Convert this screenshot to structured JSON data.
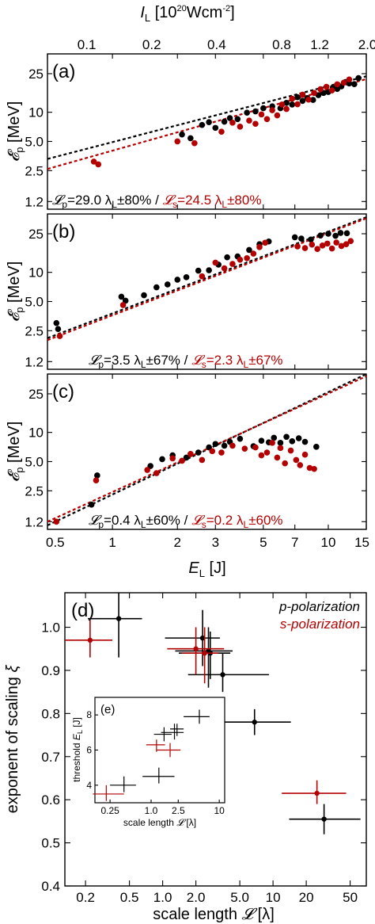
{
  "colors": {
    "p": "#000000",
    "s": "#b30000"
  },
  "top_panels": {
    "top_axis": {
      "label_main": "I",
      "label_sub": "L",
      "label_unit": "[10",
      "label_exp": "20",
      "label_unit2": "Wcm",
      "label_exp2": "-2",
      "label_close": "]",
      "ticks": [
        {
          "label": "0.1",
          "E": 0.76
        },
        {
          "label": "0.2",
          "E": 1.52
        },
        {
          "label": "0.4",
          "E": 3.04
        },
        {
          "label": "0.8",
          "E": 6.08
        },
        {
          "label": "1.2",
          "E": 9.12
        },
        {
          "label": "2.0",
          "E": 15.2
        }
      ]
    },
    "y_axis": {
      "symbol": "𝓔",
      "sub": "p",
      "unit": " [MeV]",
      "ticks": [
        {
          "label": "1.2",
          "v": 1.2
        },
        {
          "label": "2.5",
          "v": 2.5
        },
        {
          "label": "5.0",
          "v": 5.0
        },
        {
          "label": "10",
          "v": 10
        },
        {
          "label": "25",
          "v": 25
        }
      ]
    },
    "x_axis": {
      "label_main": "E",
      "label_sub": "L",
      "label_unit": " [J]",
      "ticks": [
        {
          "label": "0.5",
          "v": 0.5
        },
        {
          "label": "1",
          "v": 1
        },
        {
          "label": "2",
          "v": 2
        },
        {
          "label": "3",
          "v": 3
        },
        {
          "label": "5",
          "v": 5
        },
        {
          "label": "7",
          "v": 7
        },
        {
          "label": "10",
          "v": 10
        },
        {
          "label": "15",
          "v": 15
        }
      ]
    }
  },
  "panel_a": {
    "label": "(a)",
    "ann_p_sym": "𝓛",
    "ann_p_sub": "p",
    "ann_p_text": "=29.0 λ",
    "ann_p_sub2": "L",
    "ann_p_tail": "±80% /",
    "ann_s_sym": "𝓛",
    "ann_s_sub": "s",
    "ann_s_text": "=24.5 λ",
    "ann_s_sub2": "L",
    "ann_s_tail": "±80%"
  },
  "panel_b": {
    "label": "(b)",
    "ann_p_sym": "𝓛",
    "ann_p_sub": "p",
    "ann_p_text": "=3.5 λ",
    "ann_p_sub2": "L",
    "ann_p_tail": "±67% /",
    "ann_s_sym": "𝓛",
    "ann_s_sub": "s",
    "ann_s_text": "=2.3 λ",
    "ann_s_sub2": "L",
    "ann_s_tail": "±67%"
  },
  "panel_c": {
    "label": "(c)",
    "ann_p_sym": "𝓛",
    "ann_p_sub": "p",
    "ann_p_text": "=0.4 λ",
    "ann_p_sub2": "L",
    "ann_p_tail": "±60% /",
    "ann_s_sym": "𝓛",
    "ann_s_sub": "s",
    "ann_s_text": "=0.2 λ",
    "ann_s_sub2": "L",
    "ann_s_tail": "±60%"
  },
  "panel_d": {
    "label": "(d)",
    "legend_p": "p-polarization",
    "legend_s": "s-polarization",
    "ylabel_main": "exponent of scaling ",
    "ylabel_sym": "ξ",
    "xlabel_main": "scale length ",
    "xlabel_sym": "𝓛",
    "xlabel_unit": " [λ]",
    "x_ticks": [
      {
        "label": "0.2",
        "v": 0.2
      },
      {
        "label": "0.5",
        "v": 0.5
      },
      {
        "label": "1.0",
        "v": 1.0
      },
      {
        "label": "2.0",
        "v": 2.0
      },
      {
        "label": "5.0",
        "v": 5.0
      },
      {
        "label": "10",
        "v": 10
      },
      {
        "label": "20",
        "v": 20
      },
      {
        "label": "50",
        "v": 50
      }
    ],
    "y_ticks": [
      {
        "label": "0.4",
        "v": 0.4
      },
      {
        "label": "0.5",
        "v": 0.5
      },
      {
        "label": "0.6",
        "v": 0.6
      },
      {
        "label": "0.7",
        "v": 0.7
      },
      {
        "label": "0.8",
        "v": 0.8
      },
      {
        "label": "0.9",
        "v": 0.9
      },
      {
        "label": "1.0",
        "v": 1.0
      }
    ]
  },
  "panel_e": {
    "label": "(e)",
    "ylabel_main": "threshold ",
    "ylabel_sym": "E",
    "ylabel_sub": "L",
    "ylabel_unit": " [J]",
    "xlabel_main": "scale length ",
    "xlabel_sym": "𝓛",
    "xlabel_unit": " [λ]",
    "x_ticks": [
      {
        "label": "0.25",
        "v": 0.25
      },
      {
        "label": "1.0",
        "v": 1.0
      },
      {
        "label": "2.5",
        "v": 2.5
      },
      {
        "label": "10",
        "v": 10
      }
    ],
    "y_ticks": [
      {
        "label": "4",
        "v": 4
      },
      {
        "label": "6",
        "v": 6
      },
      {
        "label": "8",
        "v": 8
      }
    ]
  },
  "chart_data": [
    {
      "type": "scatter",
      "panel": "a",
      "x_scale": "log",
      "y_scale": "log",
      "xlim": [
        0.5,
        15
      ],
      "ylim": [
        1.0,
        40
      ],
      "fits": [
        {
          "series": "p",
          "x": [
            0.5,
            15
          ],
          "y": [
            3.3,
            23.5
          ]
        },
        {
          "series": "s",
          "x": [
            0.5,
            15
          ],
          "y": [
            2.6,
            22.0
          ]
        }
      ],
      "series": [
        {
          "name": "p",
          "x": [
            2.1,
            2.3,
            2.6,
            2.8,
            3.0,
            3.3,
            3.5,
            3.8,
            4.2,
            4.6,
            5.0,
            5.5,
            6.0,
            6.4,
            6.8,
            7.2,
            7.6,
            8.0,
            8.5,
            9.0,
            9.5,
            10.0,
            10.5,
            11.0,
            11.5,
            12.0,
            12.5,
            13.2,
            13.8
          ],
          "y": [
            5.9,
            5.4,
            7.4,
            7.9,
            6.9,
            8.0,
            8.7,
            8.5,
            9.9,
            10.2,
            11.0,
            11.5,
            11.0,
            12.5,
            12.0,
            14.3,
            13.1,
            14.0,
            13.4,
            15.0,
            15.8,
            16.2,
            18.0,
            17.4,
            18.5,
            20.5,
            19.8,
            19.5,
            22.5
          ]
        },
        {
          "name": "s",
          "x": [
            0.82,
            0.86,
            2.0,
            2.4,
            3.2,
            3.6,
            3.9,
            4.3,
            4.6,
            4.9,
            5.2,
            5.5,
            5.8,
            6.1,
            6.4,
            6.8,
            7.2,
            7.6,
            8.1,
            8.6,
            9.2,
            9.8,
            10.4,
            11.0,
            11.8,
            12.5
          ],
          "y": [
            3.1,
            2.9,
            5.0,
            4.8,
            6.3,
            7.8,
            7.1,
            8.2,
            7.6,
            9.5,
            8.5,
            10.5,
            9.3,
            12.0,
            10.8,
            13.8,
            12.1,
            15.2,
            13.5,
            15.8,
            17.3,
            18.3,
            16.8,
            19.4,
            20.2,
            21.8
          ]
        }
      ]
    },
    {
      "type": "scatter",
      "panel": "b",
      "x_scale": "log",
      "y_scale": "log",
      "xlim": [
        0.5,
        15
      ],
      "ylim": [
        1.0,
        40
      ],
      "fits": [
        {
          "series": "p",
          "x": [
            0.5,
            15
          ],
          "y": [
            2.1,
            37.0
          ]
        },
        {
          "series": "s",
          "x": [
            0.5,
            15
          ],
          "y": [
            2.0,
            36.0
          ]
        }
      ],
      "series": [
        {
          "name": "p",
          "x": [
            0.55,
            0.56,
            1.1,
            1.15,
            1.4,
            1.6,
            1.8,
            2.0,
            2.2,
            2.5,
            2.8,
            3.1,
            3.4,
            3.8,
            4.3,
            4.8,
            5.3,
            7.0,
            7.5,
            8.3,
            9.2,
            10.0,
            10.8,
            11.4,
            12.2
          ],
          "y": [
            3.0,
            2.6,
            5.6,
            5.1,
            5.8,
            7.0,
            7.5,
            8.4,
            8.9,
            10.4,
            10.5,
            12.0,
            14.3,
            14.6,
            17.0,
            19.5,
            20.8,
            23.0,
            22.3,
            21.8,
            24.0,
            25.0,
            23.8,
            25.5,
            25.3
          ]
        },
        {
          "name": "s",
          "x": [
            0.57,
            1.12,
            2.6,
            3.0,
            3.3,
            3.6,
            3.9,
            4.2,
            4.5,
            4.8,
            5.1,
            7.2,
            7.8,
            8.4,
            8.9,
            9.4,
            9.9,
            10.4,
            10.9,
            11.5,
            12.1,
            12.7
          ],
          "y": [
            2.2,
            4.6,
            9.1,
            12.6,
            11.0,
            12.2,
            13.5,
            14.0,
            15.6,
            18.2,
            20.2,
            18.5,
            17.8,
            19.3,
            17.4,
            18.9,
            19.8,
            17.6,
            20.3,
            18.7,
            19.5,
            21.0
          ]
        }
      ]
    },
    {
      "type": "scatter",
      "panel": "c",
      "x_scale": "log",
      "y_scale": "log",
      "xlim": [
        0.5,
        15
      ],
      "ylim": [
        1.0,
        40
      ],
      "fits": [
        {
          "series": "p",
          "x": [
            0.5,
            15
          ],
          "y": [
            1.1,
            40.0
          ]
        },
        {
          "series": "s",
          "x": [
            0.5,
            15
          ],
          "y": [
            1.2,
            38.0
          ]
        }
      ],
      "series": [
        {
          "name": "p",
          "x": [
            0.8,
            0.85,
            1.5,
            1.7,
            1.9,
            2.2,
            2.5,
            2.8,
            3.0,
            3.3,
            3.5,
            3.9,
            4.5,
            4.9,
            5.3,
            5.6,
            6.0,
            6.4,
            6.8,
            7.3,
            7.8,
            8.8
          ],
          "y": [
            1.8,
            3.6,
            4.5,
            5.3,
            5.8,
            5.5,
            6.2,
            7.0,
            7.6,
            7.3,
            8.0,
            8.6,
            7.2,
            8.2,
            7.9,
            8.8,
            7.8,
            9.0,
            8.1,
            8.7,
            8.0,
            7.1
          ]
        },
        {
          "name": "s",
          "x": [
            0.55,
            0.84,
            1.45,
            1.6,
            1.9,
            2.1,
            2.3,
            2.6,
            2.9,
            3.2,
            3.6,
            4.1,
            4.6,
            4.9,
            5.2,
            5.5,
            5.8,
            6.0,
            6.3,
            6.7,
            7.1,
            7.4,
            7.8,
            8.2,
            8.6
          ],
          "y": [
            1.2,
            3.2,
            4.1,
            3.8,
            5.4,
            5.1,
            6.0,
            5.2,
            6.4,
            6.2,
            7.3,
            6.8,
            7.0,
            5.8,
            6.2,
            7.8,
            5.5,
            6.9,
            4.8,
            6.5,
            5.2,
            4.6,
            5.9,
            4.3,
            4.2
          ]
        }
      ]
    },
    {
      "type": "scatter",
      "panel": "d",
      "x_scale": "log",
      "y_scale": "linear",
      "xlim": [
        0.13,
        70
      ],
      "ylim": [
        0.4,
        1.08
      ],
      "series": [
        {
          "name": "p",
          "points": [
            {
              "x": 0.4,
              "xlo": 0.21,
              "xhi": 0.65,
              "y": 1.02,
              "ylo": 0.93,
              "yhi": 1.09
            },
            {
              "x": 2.3,
              "xlo": 1.05,
              "xhi": 3.3,
              "y": 0.975,
              "ylo": 0.91,
              "yhi": 1.04
            },
            {
              "x": 3.5,
              "xlo": 1.7,
              "xhi": 9.2,
              "y": 0.89,
              "ylo": 0.85,
              "yhi": 0.94
            },
            {
              "x": 2.6,
              "xlo": 1.3,
              "xhi": 4.3,
              "y": 0.945,
              "ylo": 0.86,
              "yhi": 1.0
            },
            {
              "x": 2.7,
              "xlo": 1.4,
              "xhi": 4.1,
              "y": 0.94,
              "ylo": 0.88,
              "yhi": 0.99
            },
            {
              "x": 6.8,
              "xlo": 3.5,
              "xhi": 14.5,
              "y": 0.78,
              "ylo": 0.75,
              "yhi": 0.81
            },
            {
              "x": 29,
              "xlo": 14,
              "xhi": 62,
              "y": 0.555,
              "ylo": 0.52,
              "yhi": 0.59
            }
          ]
        },
        {
          "name": "s",
          "points": [
            {
              "x": 0.22,
              "xlo": 0.12,
              "xhi": 0.35,
              "y": 0.97,
              "ylo": 0.93,
              "yhi": 1.02
            },
            {
              "x": 2.0,
              "xlo": 1.1,
              "xhi": 3.6,
              "y": 0.95,
              "ylo": 0.89,
              "yhi": 1.0
            },
            {
              "x": 2.4,
              "xlo": 1.5,
              "xhi": 3.2,
              "y": 0.94,
              "ylo": 0.87,
              "yhi": 1.0
            },
            {
              "x": 25,
              "xlo": 12,
              "xhi": 46,
              "y": 0.615,
              "ylo": 0.59,
              "yhi": 0.645
            }
          ]
        }
      ]
    },
    {
      "type": "scatter",
      "panel": "e",
      "x_scale": "log",
      "y_scale": "linear",
      "xlim": [
        0.15,
        12
      ],
      "ylim": [
        3.0,
        9.0
      ],
      "series": [
        {
          "name": "p",
          "points": [
            {
              "x": 0.4,
              "xlo": 0.25,
              "xhi": 0.6,
              "y": 4.0,
              "ylo": 3.6,
              "yhi": 4.5
            },
            {
              "x": 1.3,
              "xlo": 0.75,
              "xhi": 2.2,
              "y": 4.5,
              "ylo": 4.1,
              "yhi": 5.0
            },
            {
              "x": 1.55,
              "xlo": 1.1,
              "xhi": 2.0,
              "y": 6.9,
              "ylo": 6.5,
              "yhi": 7.3
            },
            {
              "x": 2.2,
              "xlo": 1.4,
              "xhi": 3.0,
              "y": 7.0,
              "ylo": 6.6,
              "yhi": 7.5
            },
            {
              "x": 2.4,
              "xlo": 1.9,
              "xhi": 3.0,
              "y": 7.2,
              "ylo": 6.8,
              "yhi": 7.5
            },
            {
              "x": 5.1,
              "xlo": 3.0,
              "xhi": 7.2,
              "y": 7.9,
              "ylo": 7.5,
              "yhi": 8.3
            }
          ]
        },
        {
          "name": "s",
          "points": [
            {
              "x": 0.22,
              "xlo": 0.14,
              "xhi": 0.4,
              "y": 3.5,
              "ylo": 3.1,
              "yhi": 4.0
            },
            {
              "x": 1.2,
              "xlo": 0.85,
              "xhi": 1.6,
              "y": 6.3,
              "ylo": 5.9,
              "yhi": 6.6
            },
            {
              "x": 1.9,
              "xlo": 1.2,
              "xhi": 2.7,
              "y": 6.0,
              "ylo": 5.6,
              "yhi": 6.4
            }
          ]
        }
      ]
    }
  ]
}
